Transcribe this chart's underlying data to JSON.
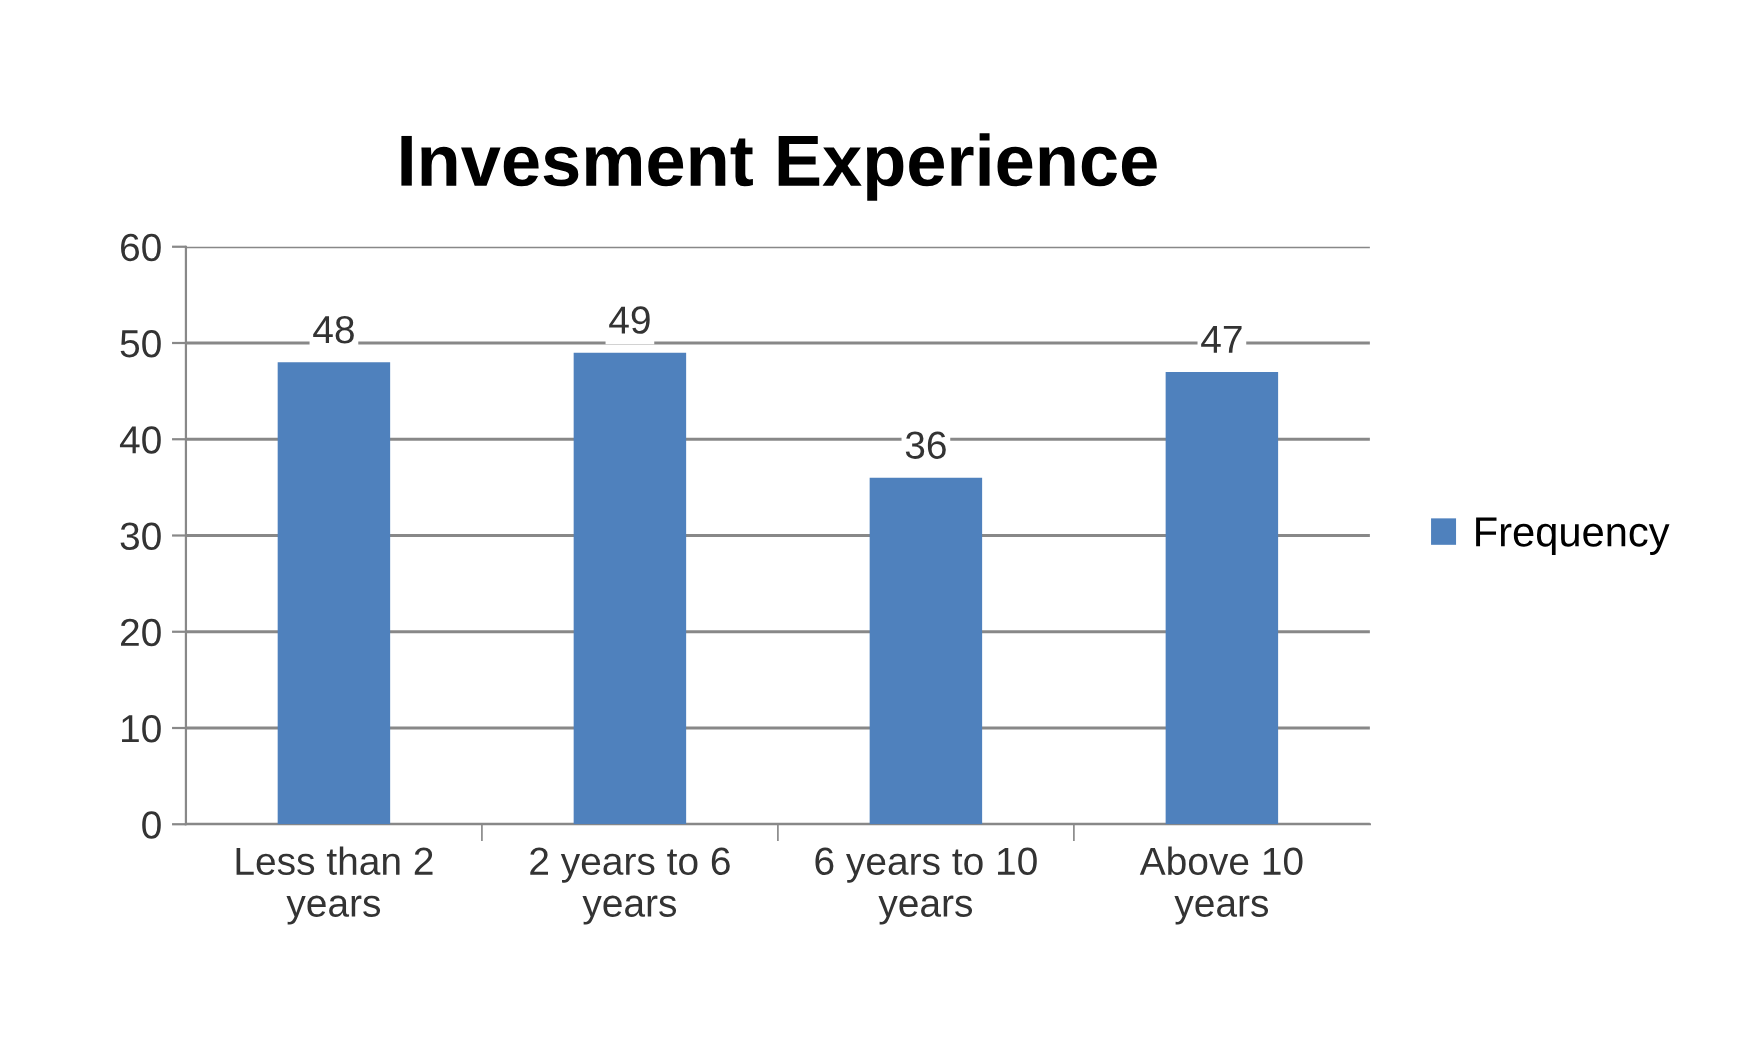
{
  "chart_data": {
    "type": "bar",
    "title": "Invesment Experience",
    "categories": [
      "Less than 2\nyears",
      "2 years to 6\nyears",
      "6 years to 10\nyears",
      "Above 10\nyears"
    ],
    "series": [
      {
        "name": "Frequency",
        "color": "#4f81bd",
        "values": [
          48,
          49,
          36,
          47
        ]
      }
    ],
    "ylim": [
      0,
      60
    ],
    "yticks": [
      0,
      10,
      20,
      30,
      40,
      50,
      60
    ],
    "grid": "y",
    "legend": "right",
    "data_labels": true
  }
}
